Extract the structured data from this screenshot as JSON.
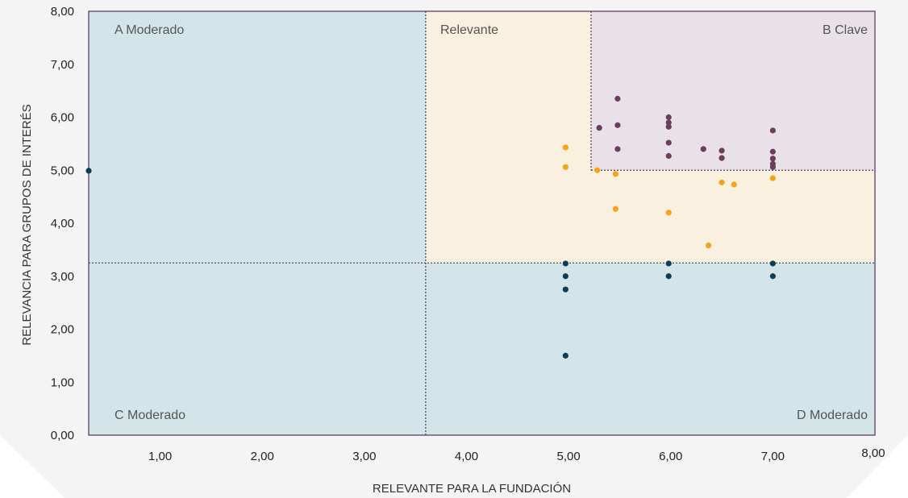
{
  "chart_data": {
    "type": "scatter",
    "xlabel": "RELEVANTE PARA LA FUNDACIÓN",
    "ylabel": "RELEVANCIA PARA GRUPOS DE INTERÉS",
    "xlim": [
      0.3,
      8.0
    ],
    "ylim": [
      0.0,
      8.0
    ],
    "x_ticks": [
      "1,00",
      "2,00",
      "3,00",
      "4,00",
      "5,00",
      "6,00",
      "7,00",
      "8,00"
    ],
    "y_ticks": [
      "0,00",
      "1,00",
      "2,00",
      "3,00",
      "4,00",
      "5,00",
      "6,00",
      "7,00",
      "8,00"
    ],
    "grid": false,
    "thresholds": {
      "x_relevant": 3.6,
      "x_key": 5.22,
      "y_relevant": 3.25,
      "y_key": 5.0
    },
    "quadrants": [
      {
        "label": "A  Moderado",
        "color": "#d3e5e8"
      },
      {
        "label": "Relevante",
        "color": "#f9f0e0"
      },
      {
        "label": "B Clave",
        "color": "#e8e1e8"
      },
      {
        "label": "C Moderado",
        "color": "#d3e5e8"
      },
      {
        "label": "D Moderado",
        "color": "#d3e5e8"
      }
    ],
    "series": [
      {
        "color": "#6b3d5f",
        "points": [
          [
            5.3,
            5.8
          ],
          [
            5.48,
            6.35
          ],
          [
            5.48,
            5.85
          ],
          [
            5.48,
            5.4
          ],
          [
            5.98,
            6.0
          ],
          [
            5.98,
            5.9
          ],
          [
            5.98,
            5.82
          ],
          [
            5.98,
            5.52
          ],
          [
            5.98,
            5.27
          ],
          [
            6.32,
            5.4
          ],
          [
            6.5,
            5.37
          ],
          [
            6.5,
            5.23
          ],
          [
            7.0,
            5.75
          ],
          [
            7.0,
            5.35
          ],
          [
            7.0,
            5.22
          ],
          [
            7.0,
            5.12
          ],
          [
            7.0,
            5.06
          ]
        ]
      },
      {
        "color": "#f5a31a",
        "points": [
          [
            4.97,
            5.43
          ],
          [
            4.97,
            5.06
          ],
          [
            5.28,
            5.0
          ],
          [
            5.46,
            4.93
          ],
          [
            5.46,
            4.27
          ],
          [
            5.98,
            4.2
          ],
          [
            6.37,
            3.58
          ],
          [
            6.5,
            4.77
          ],
          [
            6.62,
            4.73
          ],
          [
            7.0,
            4.85
          ]
        ]
      },
      {
        "color": "#0f3e54",
        "points": [
          [
            0.3,
            4.99
          ],
          [
            4.97,
            3.24
          ],
          [
            4.97,
            3.0
          ],
          [
            4.97,
            2.75
          ],
          [
            4.97,
            1.5
          ],
          [
            5.98,
            3.24
          ],
          [
            5.98,
            3.0
          ],
          [
            7.0,
            3.24
          ],
          [
            7.0,
            3.0
          ]
        ]
      }
    ]
  }
}
